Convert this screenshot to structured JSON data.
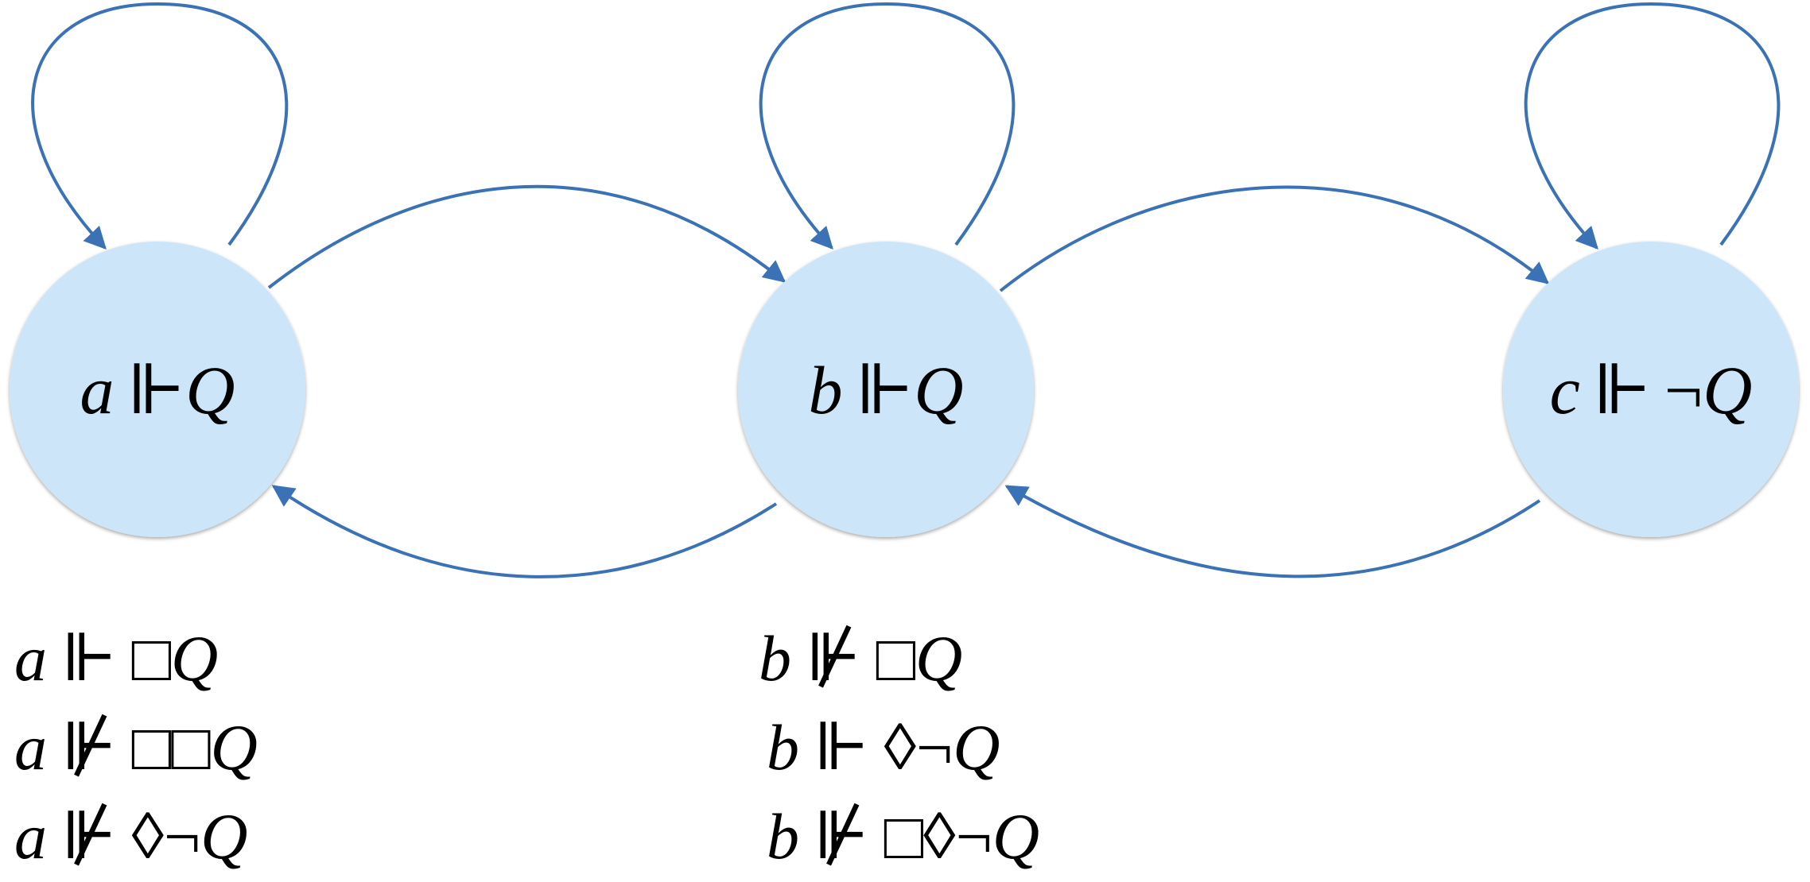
{
  "diagram": {
    "colors": {
      "node_fill": "#cce5f8",
      "edge": "#3a72b5",
      "text": "#000000"
    },
    "nodes": [
      {
        "id": "a",
        "world": "a",
        "forces": "⊩",
        "neg": "",
        "prop": "Q"
      },
      {
        "id": "b",
        "world": "b",
        "forces": "⊩",
        "neg": "",
        "prop": "Q"
      },
      {
        "id": "c",
        "world": "c",
        "forces": "⊩",
        "neg": "¬",
        "prop": "Q"
      }
    ],
    "edges": [
      {
        "from": "a",
        "to": "a",
        "kind": "self-loop"
      },
      {
        "from": "b",
        "to": "b",
        "kind": "self-loop"
      },
      {
        "from": "c",
        "to": "c",
        "kind": "self-loop"
      },
      {
        "from": "a",
        "to": "b",
        "kind": "arc"
      },
      {
        "from": "b",
        "to": "a",
        "kind": "arc"
      },
      {
        "from": "b",
        "to": "c",
        "kind": "arc"
      },
      {
        "from": "c",
        "to": "b",
        "kind": "arc"
      }
    ],
    "formulas_a": [
      {
        "world": "a",
        "rel": "⊩",
        "ops": "□",
        "neg": "",
        "prop": "Q"
      },
      {
        "world": "a",
        "rel": "⊮",
        "ops": "□□",
        "neg": "",
        "prop": "Q"
      },
      {
        "world": "a",
        "rel": "⊮",
        "ops": "◊",
        "neg": "¬",
        "prop": "Q"
      }
    ],
    "formulas_b": [
      {
        "world": "b",
        "rel": "⊮",
        "ops": "□",
        "neg": "",
        "prop": "Q"
      },
      {
        "world": "b",
        "rel": "⊩",
        "ops": "◊",
        "neg": "¬",
        "prop": "Q"
      },
      {
        "world": "b",
        "rel": "⊮",
        "ops": "□◊",
        "neg": "¬",
        "prop": "Q"
      }
    ]
  }
}
